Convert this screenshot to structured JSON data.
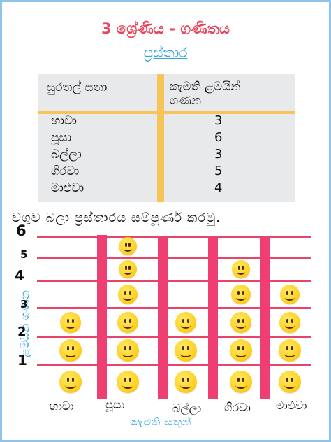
{
  "header": {
    "title": "3 ශ්‍රේණිය - ගණිතය",
    "subtitle": "ප්‍රස්තාර"
  },
  "table": {
    "col_left": "සුරතල් සතා",
    "col_right": [
      "කැමති ළමයින්",
      "ගණන"
    ],
    "rows": [
      {
        "name": "හාවා",
        "count": "3"
      },
      {
        "name": "පූසා",
        "count": "6"
      },
      {
        "name": "බල්ලා",
        "count": "3"
      },
      {
        "name": "ගිරවා",
        "count": "5"
      },
      {
        "name": "මාළුවා",
        "count": "4"
      }
    ]
  },
  "instruction": "වගුව බලා ප්‍රස්තාරය සම්පූර්ණ කරමු.",
  "chart_data": {
    "type": "bar",
    "categories": [
      "හාවා",
      "පූසා",
      "බල්ලා",
      "ගිරවා",
      "මාළුවා"
    ],
    "values": [
      3,
      6,
      3,
      5,
      4
    ],
    "xlabel": "කැමති සතුන්",
    "ylabel": "ළමයින් ගණන",
    "y_ticks": [
      "1",
      "2",
      "3",
      "4",
      "5",
      "6"
    ],
    "ylim": [
      0,
      6
    ],
    "grid": true,
    "marker_icon": "smiley-face-icon",
    "colors": {
      "bar_lines": "#ee3f73",
      "smiley": "#ffd42a",
      "title": "#e8445c",
      "accent": "#3aa6d6",
      "table_rule": "#f6c457"
    }
  }
}
